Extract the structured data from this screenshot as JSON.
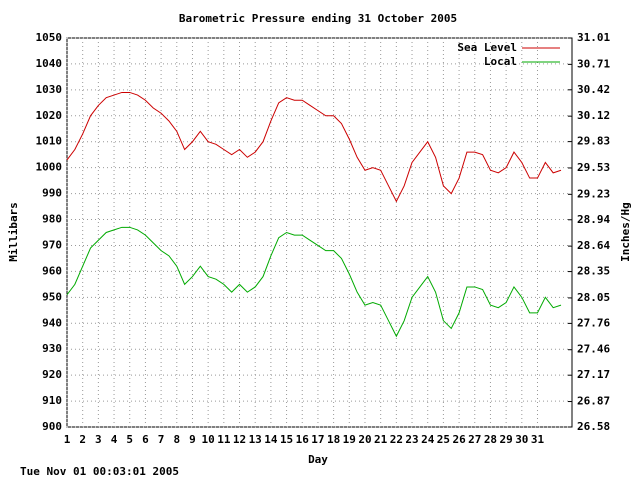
{
  "chart_data": {
    "type": "line",
    "title": "Barometric Pressure ending 31 October 2005",
    "x_label": "Day",
    "y_label": "Millibars",
    "y2_label": "Inches/Hg",
    "footer": "Tue Nov 01 00:03:01 2005",
    "xlim": [
      1,
      33.2
    ],
    "xticks": [
      1,
      2,
      3,
      4,
      5,
      6,
      7,
      8,
      9,
      10,
      11,
      12,
      13,
      14,
      15,
      16,
      17,
      18,
      19,
      20,
      21,
      22,
      23,
      24,
      25,
      26,
      27,
      28,
      29,
      30,
      31
    ],
    "ylim": [
      900,
      1050
    ],
    "yticks": [
      900,
      910,
      920,
      930,
      940,
      950,
      960,
      970,
      980,
      990,
      1000,
      1010,
      1020,
      1030,
      1040,
      1050
    ],
    "y2lim": [
      26.58,
      31.01
    ],
    "y2ticks": [
      26.58,
      26.87,
      27.17,
      27.46,
      27.76,
      28.05,
      28.35,
      28.64,
      28.94,
      29.23,
      29.53,
      29.83,
      30.12,
      30.42,
      30.71,
      31.01
    ],
    "grid": true,
    "legend": "upper right",
    "x": [
      1,
      1.5,
      2,
      2.5,
      3,
      3.5,
      4,
      4.5,
      5,
      5.5,
      6,
      6.5,
      7,
      7.5,
      8,
      8.5,
      9,
      9.5,
      10,
      10.5,
      11,
      11.5,
      12,
      12.5,
      13,
      13.5,
      14,
      14.5,
      15,
      15.5,
      16,
      16.5,
      17,
      17.5,
      18,
      18.5,
      19,
      19.5,
      20,
      20.5,
      21,
      21.5,
      22,
      22.5,
      23,
      23.5,
      24,
      24.5,
      25,
      25.5,
      26,
      26.5,
      27,
      27.5,
      28,
      28.5,
      29,
      29.5,
      30,
      30.5,
      31,
      31.5,
      32,
      32.5
    ],
    "series": [
      {
        "name": "Sea Level",
        "color": "#cc0000",
        "values": [
          1003,
          1007,
          1013,
          1020,
          1024,
          1027,
          1028,
          1029,
          1029,
          1028,
          1026,
          1023,
          1021,
          1018,
          1014,
          1007,
          1010,
          1014,
          1010,
          1009,
          1007,
          1005,
          1007,
          1004,
          1006,
          1010,
          1018,
          1025,
          1027,
          1026,
          1026,
          1024,
          1022,
          1020,
          1020,
          1017,
          1011,
          1004,
          999,
          1000,
          999,
          993,
          987,
          993,
          1002,
          1006,
          1010,
          1004,
          993,
          990,
          996,
          1006,
          1006,
          1005,
          999,
          998,
          1000,
          1006,
          1002,
          996,
          996,
          1002,
          998,
          999
        ]
      },
      {
        "name": "Local",
        "color": "#00aa00",
        "values": [
          951,
          955,
          962,
          969,
          972,
          975,
          976,
          977,
          977,
          976,
          974,
          971,
          968,
          966,
          962,
          955,
          958,
          962,
          958,
          957,
          955,
          952,
          955,
          952,
          954,
          958,
          966,
          973,
          975,
          974,
          974,
          972,
          970,
          968,
          968,
          965,
          959,
          952,
          947,
          948,
          947,
          941,
          935,
          941,
          950,
          954,
          958,
          952,
          941,
          938,
          944,
          954,
          954,
          953,
          947,
          946,
          948,
          954,
          950,
          944,
          944,
          950,
          946,
          947
        ]
      }
    ]
  }
}
